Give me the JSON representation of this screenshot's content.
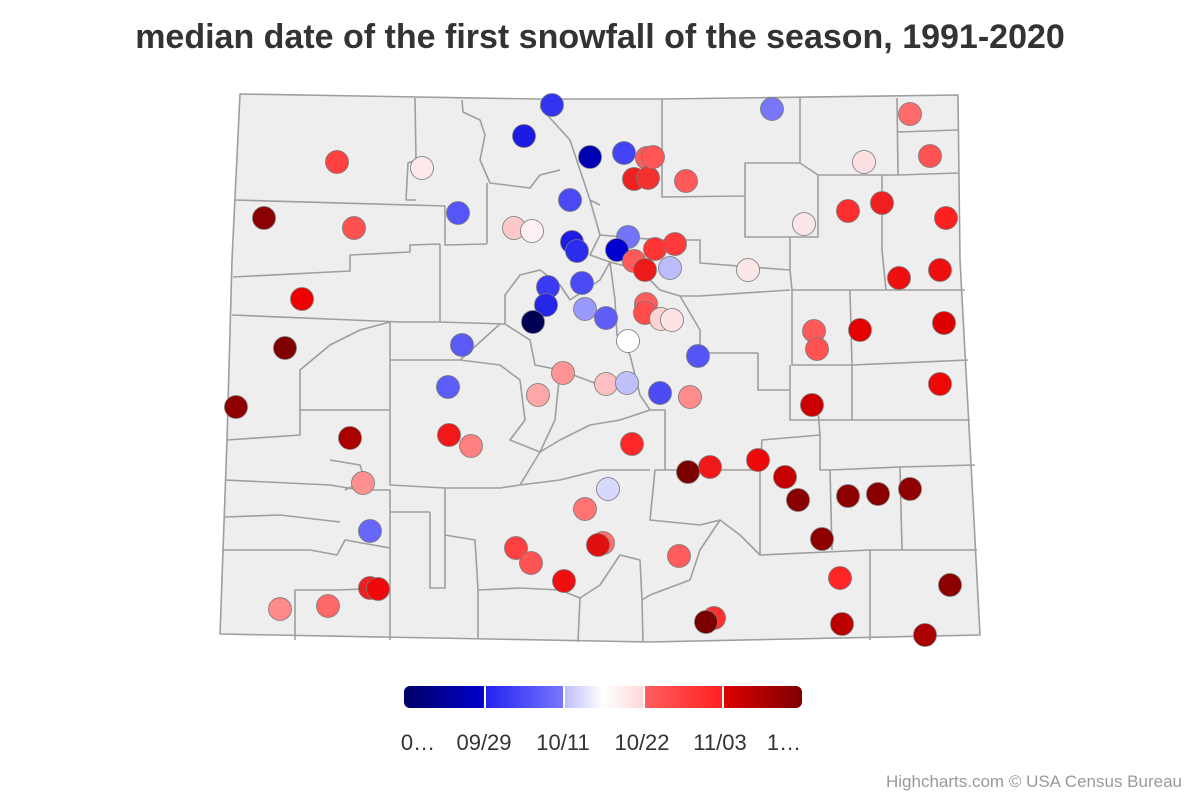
{
  "title": "median date of the first snowfall of the season, 1991-2020",
  "credits": "Highcharts.com © USA Census Bureau",
  "chart_data": {
    "type": "map",
    "map_region": "Colorado counties",
    "legend_position": "bottom",
    "color_axis": {
      "stops": [
        "#000066",
        "#0000dd",
        "#6a6aff",
        "#ffffff",
        "#ff5a5a",
        "#ee0000",
        "#7f0000"
      ],
      "tick_labels": [
        "0…",
        "09/29",
        "10/11",
        "10/22",
        "11/03",
        "1…"
      ]
    },
    "stations": [
      {
        "color": "#3333f0"
      },
      {
        "color": "#1a1ae0"
      },
      {
        "color": "#0000b3"
      },
      {
        "color": "#4444f5"
      },
      {
        "color": "#7777f8"
      },
      {
        "color": "#ff4040"
      },
      {
        "color": "#fde7ea"
      },
      {
        "color": "#ff5050"
      },
      {
        "color": "#ff5c5c"
      },
      {
        "color": "#ee2222"
      },
      {
        "color": "#f23030"
      },
      {
        "color": "#ff5555"
      },
      {
        "color": "#ff5a5a"
      },
      {
        "color": "#ff6a6a"
      },
      {
        "color": "#fde0e4"
      },
      {
        "color": "#8b0000"
      },
      {
        "color": "#ff5252"
      },
      {
        "color": "#5555f8"
      },
      {
        "color": "#fcc8c8"
      },
      {
        "color": "#fdf0f2"
      },
      {
        "color": "#4a4af5"
      },
      {
        "color": "#1c1ce5"
      },
      {
        "color": "#2c2cee"
      },
      {
        "color": "#7474fa"
      },
      {
        "color": "#0000d0"
      },
      {
        "color": "#ff5a5a"
      },
      {
        "color": "#ee1a1a"
      },
      {
        "color": "#ff3535"
      },
      {
        "color": "#bcbcfc"
      },
      {
        "color": "#ff3a3a"
      },
      {
        "color": "#fbe6e8"
      },
      {
        "color": "#fde6ea"
      },
      {
        "color": "#ff2e2e"
      },
      {
        "color": "#ee2020"
      },
      {
        "color": "#ff2020"
      },
      {
        "color": "#ee1010"
      },
      {
        "color": "#3a3af2"
      },
      {
        "color": "#2525e8"
      },
      {
        "color": "#000055"
      },
      {
        "color": "#4b4bf6"
      },
      {
        "color": "#9999fc"
      },
      {
        "color": "#5f5ff8"
      },
      {
        "color": "#ff5c5c"
      },
      {
        "color": "#ff4c4c"
      },
      {
        "color": "#fcd2d2"
      },
      {
        "color": "#fde4e4"
      },
      {
        "color": "#ffffff"
      },
      {
        "color": "#5555f5"
      },
      {
        "color": "#ee0000"
      },
      {
        "color": "#ff5a5a"
      },
      {
        "color": "#ff5252"
      },
      {
        "color": "#e50000"
      },
      {
        "color": "#ee1010"
      },
      {
        "color": "#dd0000"
      },
      {
        "color": "#ee0808"
      },
      {
        "color": "#cc0000"
      },
      {
        "color": "#f01818"
      },
      {
        "color": "#aa0000"
      },
      {
        "color": "#800000"
      },
      {
        "color": "#8e0000"
      },
      {
        "color": "#5a5af5"
      },
      {
        "color": "#5d5df8"
      },
      {
        "color": "#ff9494"
      },
      {
        "color": "#fcc0c0"
      },
      {
        "color": "#fca8a8"
      },
      {
        "color": "#c0c0fc"
      },
      {
        "color": "#4c4cf5"
      },
      {
        "color": "#ff8c8c"
      },
      {
        "color": "#ff8080"
      },
      {
        "color": "#ff2828"
      },
      {
        "color": "#f01818"
      },
      {
        "color": "#ff4040"
      },
      {
        "color": "#ff7373"
      },
      {
        "color": "#ff7070"
      },
      {
        "color": "#6666f8"
      },
      {
        "color": "#ff5454"
      },
      {
        "color": "#ff9090"
      },
      {
        "color": "#7c0000"
      },
      {
        "color": "#ee0a0a"
      },
      {
        "color": "#c40000"
      },
      {
        "color": "#880000"
      },
      {
        "color": "#8c0000"
      },
      {
        "color": "#8a0000"
      },
      {
        "color": "#900000"
      },
      {
        "color": "#8d0000"
      },
      {
        "color": "#8c0000"
      },
      {
        "color": "#d8d8fc"
      },
      {
        "color": "#ff5c5c"
      },
      {
        "color": "#ff8a8a"
      },
      {
        "color": "#ff6868"
      },
      {
        "color": "#ee2020"
      },
      {
        "color": "#ee0a0a"
      },
      {
        "color": "#ee1010"
      },
      {
        "color": "#ff3030"
      },
      {
        "color": "#ff2525"
      },
      {
        "color": "#7a0000"
      },
      {
        "color": "#bb0000"
      },
      {
        "color": "#aa0000"
      },
      {
        "color": "#e01010"
      },
      {
        "color": "#a80000"
      },
      {
        "color": "#7c0000"
      },
      {
        "color": "#ff1a1a"
      },
      {
        "color": "#ff3030"
      },
      {
        "color": "#aa0000"
      },
      {
        "color": "#7c0000"
      },
      {
        "color": "#ff4040"
      },
      {
        "color": "#cc0000"
      },
      {
        "color": "#880000"
      },
      {
        "color": "#6f0000"
      }
    ]
  }
}
